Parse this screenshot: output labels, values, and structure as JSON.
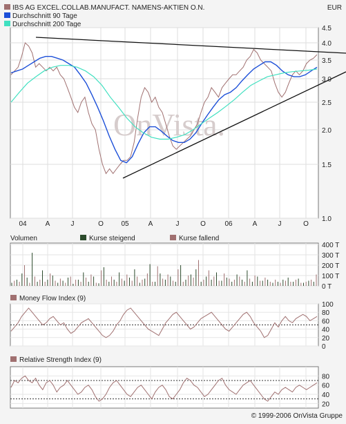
{
  "header": {
    "currency": "EUR",
    "footer": "© 1999-2006 OnVista Gruppe",
    "watermark": "OnVista."
  },
  "legend": {
    "price": "IBS AG EXCEL.COLLAB.MANUFACT. NAMENS-AKTIEN O.N.",
    "ma90": "Durchschnitt 90 Tage",
    "ma200": "Durchschnitt 200 Tage"
  },
  "volume_legend": {
    "title": "Volumen",
    "rising": "Kurse steigend",
    "falling": "Kurse fallend"
  },
  "colors": {
    "price": "#a07070",
    "ma90": "#1c4fd8",
    "ma200": "#40e0c0",
    "rising": "#2b4a2b",
    "falling": "#a07070",
    "panel_bg": "#ffffff",
    "border": "#777777"
  },
  "chart_data": [
    {
      "type": "line",
      "log_scale": true,
      "x_ticks": [
        "04",
        "A",
        "J",
        "O",
        "05",
        "A",
        "J",
        "O",
        "06",
        "A",
        "J",
        "O"
      ],
      "y_ticks": [
        "4.5",
        "4.0",
        "3.5",
        "3.0",
        "2.5",
        "2.0",
        "1.5",
        "1.0"
      ],
      "ylim": [
        1.0,
        4.6
      ],
      "grid": true,
      "series": [
        {
          "name": "IBS AG EXCEL.COLLAB.MANUFACT. NAMENS-AKTIEN O.N.",
          "values": [
            3.1,
            3.2,
            3.3,
            3.6,
            4.0,
            3.9,
            3.7,
            3.3,
            3.4,
            3.3,
            3.2,
            3.3,
            3.2,
            3.3,
            3.1,
            3.0,
            2.8,
            2.6,
            2.4,
            2.3,
            2.5,
            2.6,
            2.3,
            2.1,
            2.0,
            1.7,
            1.5,
            1.4,
            1.45,
            1.4,
            1.45,
            1.5,
            1.55,
            1.55,
            1.6,
            1.8,
            2.2,
            2.6,
            2.8,
            2.7,
            2.5,
            2.6,
            2.4,
            2.3,
            2.1,
            1.9,
            1.75,
            1.7,
            1.75,
            1.8,
            1.85,
            1.9,
            2.0,
            2.1,
            2.3,
            2.5,
            2.6,
            2.8,
            2.7,
            2.6,
            2.8,
            2.9,
            3.0,
            3.1,
            3.1,
            3.2,
            3.3,
            3.5,
            3.6,
            3.8,
            3.7,
            3.5,
            3.4,
            3.3,
            3.2,
            2.9,
            2.7,
            2.6,
            2.7,
            2.9,
            3.1,
            3.2,
            3.1,
            3.2,
            3.4,
            3.5,
            3.55,
            3.65
          ]
        },
        {
          "name": "Durchschnitt 90 Tage",
          "values": [
            3.15,
            3.2,
            3.25,
            3.35,
            3.45,
            3.55,
            3.6,
            3.6,
            3.55,
            3.5,
            3.4,
            3.3,
            3.1,
            2.9,
            2.65,
            2.4,
            2.15,
            1.9,
            1.7,
            1.55,
            1.52,
            1.6,
            1.78,
            1.95,
            2.05,
            2.05,
            1.98,
            1.9,
            1.83,
            1.8,
            1.8,
            1.85,
            1.95,
            2.1,
            2.25,
            2.4,
            2.55,
            2.65,
            2.7,
            2.8,
            2.95,
            3.1,
            3.25,
            3.35,
            3.45,
            3.45,
            3.35,
            3.2,
            3.1,
            3.05,
            3.05,
            3.1,
            3.2,
            3.3
          ]
        },
        {
          "name": "Durchschnitt 200 Tage",
          "values": [
            2.5,
            2.7,
            2.9,
            3.05,
            3.2,
            3.3,
            3.35,
            3.35,
            3.3,
            3.2,
            3.05,
            2.85,
            2.6,
            2.4,
            2.2,
            2.05,
            1.95,
            1.88,
            1.85,
            1.85,
            1.88,
            1.92,
            2.0,
            2.1,
            2.2,
            2.3,
            2.42,
            2.55,
            2.7,
            2.85,
            2.95,
            3.05,
            3.1,
            3.15,
            3.18,
            3.2,
            3.22,
            3.25
          ]
        }
      ]
    },
    {
      "type": "bar",
      "y_ticks": [
        "400 T",
        "300 T",
        "200 T",
        "100 T",
        "0 T"
      ],
      "ylim": [
        0,
        400
      ],
      "series": [
        {
          "name": "Kurse steigend",
          "values": [
            30,
            60,
            120,
            80,
            320,
            40,
            150,
            60,
            100,
            30,
            50,
            80,
            20,
            60,
            130,
            40,
            90,
            25,
            180,
            40,
            60,
            130,
            50,
            80,
            160,
            30,
            70,
            210,
            40,
            120,
            60,
            90,
            40,
            200,
            60,
            110,
            160,
            40,
            90,
            60,
            130,
            50,
            80,
            40,
            110,
            60,
            150,
            40,
            90,
            50,
            60,
            30,
            40,
            60,
            80,
            40,
            70,
            30,
            50,
            40
          ]
        },
        {
          "name": "Kurse fallend",
          "values": [
            50,
            40,
            200,
            30,
            90,
            60,
            40,
            120,
            50,
            70,
            30,
            90,
            60,
            40,
            80,
            110,
            30,
            150,
            60,
            90,
            40,
            70,
            110,
            50,
            90,
            60,
            120,
            40,
            190,
            70,
            110,
            50,
            160,
            40,
            100,
            80,
            250,
            60,
            150,
            90,
            50,
            120,
            70,
            60,
            90,
            40,
            70,
            100,
            50,
            80,
            40,
            60,
            30,
            50,
            40,
            60,
            30,
            40,
            60,
            110
          ]
        }
      ]
    },
    {
      "type": "line",
      "title": "Money Flow Index (9)",
      "y_ticks": [
        "100",
        "80",
        "60",
        "40",
        "20",
        "0"
      ],
      "ylim": [
        0,
        100
      ],
      "series": [
        {
          "name": "Money Flow Index (9)",
          "values": [
            35,
            45,
            55,
            70,
            80,
            90,
            80,
            70,
            60,
            50,
            55,
            65,
            70,
            60,
            50,
            55,
            40,
            30,
            35,
            45,
            55,
            60,
            65,
            55,
            45,
            35,
            25,
            20,
            25,
            35,
            50,
            60,
            75,
            85,
            90,
            80,
            70,
            60,
            50,
            40,
            35,
            30,
            25,
            40,
            55,
            65,
            75,
            80,
            70,
            60,
            50,
            40,
            45,
            55,
            65,
            70,
            75,
            80,
            70,
            60,
            50,
            40,
            35,
            45,
            55,
            65,
            75,
            80,
            70,
            55,
            45,
            35,
            20,
            25,
            40,
            55,
            45,
            60,
            70,
            60,
            55,
            65,
            70,
            75,
            70,
            60,
            65,
            70
          ]
        }
      ]
    },
    {
      "type": "line",
      "title": "Relative Strength Index (9)",
      "y_ticks": [
        "80",
        "60",
        "40",
        "20"
      ],
      "ylim": [
        10,
        100
      ],
      "series": [
        {
          "name": "Relative Strength Index (9)",
          "values": [
            55,
            70,
            65,
            75,
            80,
            70,
            65,
            75,
            60,
            50,
            65,
            70,
            60,
            45,
            55,
            60,
            70,
            60,
            50,
            40,
            45,
            55,
            60,
            50,
            35,
            25,
            30,
            40,
            55,
            65,
            70,
            60,
            50,
            40,
            35,
            45,
            55,
            60,
            50,
            40,
            30,
            45,
            55,
            60,
            50,
            35,
            30,
            40,
            50,
            65,
            75,
            70,
            60,
            55,
            45,
            35,
            40,
            50,
            60,
            70,
            75,
            60,
            50,
            45,
            40,
            50,
            60,
            65,
            70,
            60,
            50,
            40,
            30,
            25,
            35,
            45,
            40,
            50,
            55,
            50,
            45,
            55,
            60,
            55,
            50,
            55,
            60,
            65
          ]
        }
      ]
    }
  ]
}
